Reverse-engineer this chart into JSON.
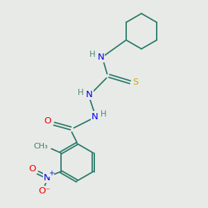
{
  "background_color": "#e8eae8",
  "atom_colors": {
    "C": "#2d7d6b",
    "N": "#0000ee",
    "O": "#ee0000",
    "S": "#ccaa00",
    "H": "#4a8a7a"
  },
  "bond_color": "#2d7d6b",
  "figsize": [
    3.0,
    3.0
  ],
  "dpi": 100
}
